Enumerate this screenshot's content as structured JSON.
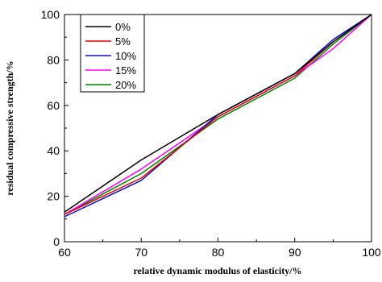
{
  "chart_data": {
    "type": "line",
    "title": "",
    "xlabel": "relative dynamic modulus of elasticity/%",
    "ylabel": "residual compressive strength/%",
    "xlim": [
      60,
      100
    ],
    "ylim": [
      0,
      100
    ],
    "xticks": [
      60,
      70,
      80,
      90,
      100
    ],
    "yticks": [
      0,
      20,
      40,
      60,
      80,
      100
    ],
    "grid": false,
    "legend_position": "top-left",
    "series": [
      {
        "name": "0%",
        "color": "#000000",
        "x": [
          60,
          70,
          80,
          90,
          95,
          100
        ],
        "y": [
          13,
          36,
          56,
          74,
          88,
          100
        ]
      },
      {
        "name": "5%",
        "color": "#e00000",
        "x": [
          60,
          70,
          80,
          90,
          95,
          100
        ],
        "y": [
          12,
          28,
          55,
          73,
          88,
          100
        ]
      },
      {
        "name": "10%",
        "color": "#1010c0",
        "x": [
          60,
          70,
          80,
          90,
          95,
          100
        ],
        "y": [
          11,
          27,
          56,
          74,
          89,
          100
        ]
      },
      {
        "name": "15%",
        "color": "#ff00ff",
        "x": [
          60,
          70,
          80,
          90,
          95,
          100
        ],
        "y": [
          12,
          32,
          55,
          73,
          85,
          100
        ]
      },
      {
        "name": "20%",
        "color": "#008000",
        "x": [
          60,
          70,
          80,
          90,
          95,
          100
        ],
        "y": [
          12,
          30,
          54,
          72,
          87,
          100
        ]
      }
    ]
  }
}
